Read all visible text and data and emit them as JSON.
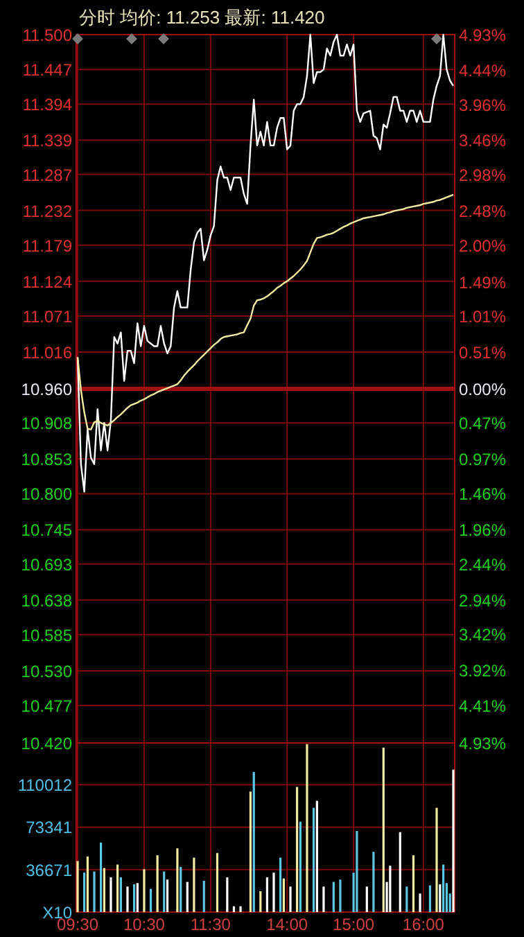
{
  "chart_data": [
    {
      "type": "line",
      "title": "分时 均价: 11.253 最新: 11.420",
      "tick_labels": "y",
      "grid": true,
      "categories": [
        null,
        null,
        null,
        null,
        null,
        null,
        null,
        null,
        null,
        null,
        null,
        null,
        null,
        null,
        null,
        null,
        null,
        null,
        null,
        null,
        null,
        null,
        null,
        null,
        null,
        null,
        null,
        null,
        null,
        null,
        null,
        null,
        null,
        null,
        null,
        null,
        null,
        null,
        null,
        null,
        null,
        null,
        null,
        null,
        null,
        null,
        null,
        null,
        null,
        null,
        null,
        null,
        null,
        null,
        null,
        null,
        null,
        null,
        null,
        null,
        null,
        null,
        null,
        null,
        null,
        null,
        null,
        null,
        null,
        null,
        null,
        null,
        null,
        null,
        null,
        null,
        null,
        null,
        null,
        null,
        null,
        null,
        null,
        null,
        null,
        null,
        null,
        null,
        null,
        null,
        null,
        null,
        null,
        null,
        null,
        null,
        null,
        null,
        null,
        null,
        null,
        null,
        null,
        null,
        null,
        null,
        null,
        null,
        null,
        null,
        null,
        null,
        null,
        null
      ],
      "ylim": [
        10.42,
        11.5
      ],
      "yticks": [
        {
          "value": 11.5,
          "label": "11.500"
        },
        11.447,
        11.394,
        11.339,
        11.287,
        11.232,
        11.179,
        11.124,
        11.071,
        11.016,
        {
          "value": 10.96,
          "label": "10.960"
        },
        10.908,
        10.853,
        {
          "value": 10.8,
          "label": "10.800"
        },
        10.745,
        10.693,
        10.638,
        10.585,
        {
          "value": 10.53,
          "label": "10.530"
        },
        10.477,
        {
          "value": 10.42,
          "label": "10.420"
        }
      ],
      "y2lim": [
        -4.93,
        4.93
      ],
      "y2ticks": [
        {
          "value": 4.93,
          "label": "4.93%"
        },
        {
          "value": 4.44,
          "label": "4.44%"
        },
        {
          "value": 3.96,
          "label": "3.96%"
        },
        {
          "value": 3.46,
          "label": "3.46%"
        },
        {
          "value": 2.98,
          "label": "2.98%"
        },
        {
          "value": 2.48,
          "label": "2.48%"
        },
        {
          "value": 2,
          "label": "2.00%"
        },
        {
          "value": 1.49,
          "label": "1.49%"
        },
        {
          "value": 1.01,
          "label": "1.01%"
        },
        {
          "value": 0.51,
          "label": "0.51%"
        },
        {
          "value": 0,
          "label": "0.00%"
        },
        {
          "value": -0.47,
          "label": "0.47%"
        },
        {
          "value": -0.97,
          "label": "0.97%"
        },
        {
          "value": -1.46,
          "label": "1.46%"
        },
        {
          "value": -1.96,
          "label": "1.96%"
        },
        {
          "value": -2.44,
          "label": "2.44%"
        },
        {
          "value": -2.94,
          "label": "2.94%"
        },
        {
          "value": -3.42,
          "label": "3.42%"
        },
        {
          "value": -3.92,
          "label": "3.92%"
        },
        {
          "value": -4.41,
          "label": "4.41%"
        },
        {
          "value": -4.93,
          "label": "4.93%"
        }
      ],
      "ref_lines": [
        {
          "axis": "y",
          "value": 10.96
        }
      ],
      "series": [
        {
          "color": "#ffffff",
          "values": [
            11.008,
            10.845,
            10.803,
            10.898,
            10.855,
            10.845,
            10.929,
            10.866,
            10.908,
            10.866,
            10.912,
            11.039,
            11.029,
            11.046,
            10.972,
            11.018,
            11.018,
            10.999,
            11.06,
            11.025,
            11.056,
            11.033,
            11.029,
            11.025,
            11.025,
            11.056,
            11.029,
            11.014,
            11.025,
            11.084,
            11.109,
            11.084,
            11.084,
            11.084,
            11.141,
            11.183,
            11.198,
            11.204,
            11.156,
            11.172,
            11.194,
            11.208,
            11.278,
            11.299,
            11.282,
            11.282,
            11.263,
            11.282,
            11.282,
            11.282,
            11.257,
            11.242,
            11.331,
            11.401,
            11.331,
            11.352,
            11.331,
            11.367,
            11.331,
            11.331,
            11.358,
            11.373,
            11.373,
            11.325,
            11.331,
            11.384,
            11.394,
            11.394,
            11.405,
            11.437,
            11.5,
            11.426,
            11.443,
            11.443,
            11.447,
            11.479,
            11.468,
            11.489,
            11.5,
            11.468,
            11.468,
            11.485,
            11.468,
            11.485,
            11.384,
            11.367,
            11.38,
            11.382,
            11.384,
            11.346,
            11.342,
            11.325,
            11.363,
            11.358,
            11.38,
            11.405,
            11.405,
            11.384,
            11.384,
            11.367,
            11.384,
            11.384,
            11.367,
            11.384,
            11.367,
            11.367,
            11.367,
            11.401,
            11.422,
            11.437,
            11.5,
            11.447,
            11.43,
            11.422
          ]
        },
        {
          "color": "#f2eca0",
          "values": [
            11.008,
            10.958,
            10.924,
            10.899,
            10.898,
            10.909,
            10.911,
            10.908,
            10.906,
            10.904,
            10.908,
            10.912,
            10.917,
            10.921,
            10.926,
            10.931,
            10.935,
            10.937,
            10.939,
            10.942,
            10.944,
            10.947,
            10.95,
            10.952,
            10.955,
            10.957,
            10.959,
            10.961,
            10.963,
            10.965,
            10.967,
            10.973,
            10.98,
            10.986,
            10.991,
            10.996,
            11.002,
            11.007,
            11.012,
            11.017,
            11.022,
            11.027,
            11.031,
            11.036,
            11.039,
            11.04,
            11.041,
            11.042,
            11.043,
            11.045,
            11.046,
            11.057,
            11.067,
            11.087,
            11.095,
            11.096,
            11.098,
            11.101,
            11.105,
            11.109,
            11.114,
            11.117,
            11.121,
            11.124,
            11.128,
            11.132,
            11.137,
            11.142,
            11.148,
            11.155,
            11.168,
            11.181,
            11.19,
            11.191,
            11.193,
            11.195,
            11.196,
            11.198,
            11.201,
            11.204,
            11.207,
            11.209,
            11.212,
            11.214,
            11.216,
            11.218,
            11.22,
            11.221,
            11.222,
            11.223,
            11.224,
            11.225,
            11.226,
            11.228,
            11.229,
            11.231,
            11.232,
            11.233,
            11.234,
            11.236,
            11.237,
            11.238,
            11.239,
            11.24,
            11.242,
            11.243,
            11.244,
            11.245,
            11.247,
            11.248,
            11.25,
            11.252,
            11.254,
            11.256
          ]
        }
      ]
    },
    {
      "type": "bar",
      "grid": true,
      "categories": [
        "09:30",
        null,
        null,
        null,
        null,
        null,
        null,
        null,
        null,
        null,
        null,
        null,
        null,
        null,
        null,
        null,
        null,
        null,
        null,
        null,
        "10:30",
        null,
        null,
        null,
        null,
        null,
        null,
        null,
        null,
        null,
        null,
        null,
        null,
        null,
        null,
        null,
        null,
        null,
        null,
        null,
        "11:30",
        null,
        null,
        null,
        null,
        null,
        null,
        null,
        null,
        null,
        null,
        null,
        null,
        null,
        null,
        null,
        null,
        null,
        null,
        null,
        null,
        null,
        null,
        "14:00",
        null,
        null,
        null,
        null,
        null,
        null,
        null,
        null,
        null,
        null,
        null,
        null,
        null,
        null,
        null,
        null,
        null,
        null,
        null,
        "15:00",
        null,
        null,
        null,
        null,
        null,
        null,
        null,
        null,
        null,
        null,
        null,
        null,
        null,
        null,
        null,
        null,
        null,
        null,
        null,
        null,
        "16:00",
        null,
        null,
        null,
        null,
        null,
        null,
        null,
        null,
        null
      ],
      "ylim": [
        0,
        146000
      ],
      "yticks": [
        {
          "value": 0,
          "label": "X10"
        },
        36671,
        73341,
        110012
      ],
      "values": [
        44000,
        null,
        34000,
        48000,
        null,
        35000,
        null,
        60000,
        38000,
        null,
        30000,
        null,
        41000,
        30000,
        null,
        22000,
        null,
        24000,
        25000,
        null,
        37000,
        null,
        20000,
        null,
        49000,
        null,
        35000,
        28000,
        null,
        null,
        55000,
        39000,
        null,
        26000,
        null,
        47000,
        null,
        null,
        27000,
        null,
        null,
        null,
        51000,
        null,
        null,
        30000,
        null,
        5000,
        null,
        5000,
        null,
        null,
        104000,
        121000,
        null,
        18000,
        null,
        30000,
        null,
        34000,
        null,
        47000,
        29000,
        null,
        22000,
        null,
        108000,
        78000,
        null,
        145000,
        null,
        90000,
        96000,
        null,
        22000,
        null,
        null,
        26000,
        null,
        28000,
        null,
        null,
        null,
        34000,
        70000,
        null,
        null,
        22000,
        null,
        52000,
        null,
        null,
        142000,
        26000,
        40000,
        null,
        null,
        69000,
        null,
        22000,
        null,
        49000,
        null,
        16000,
        null,
        null,
        23000,
        null,
        90000,
        24000,
        41000,
        25000,
        16000,
        123000
      ],
      "colors": [
        "#f2eca0",
        null,
        "#5cc8e8",
        "#f2eca0",
        null,
        "#5cc8e8",
        null,
        "#5cc8e8",
        "#f2eca0",
        null,
        "#ffffff",
        null,
        "#f2eca0",
        "#5cc8e8",
        null,
        "#ffffff",
        null,
        "#5cc8e8",
        "#ffffff",
        null,
        "#f2eca0",
        null,
        "#5cc8e8",
        null,
        "#f2eca0",
        null,
        "#5cc8e8",
        "#ffffff",
        null,
        null,
        "#f2eca0",
        "#5cc8e8",
        null,
        "#ffffff",
        null,
        "#f2eca0",
        null,
        null,
        "#5cc8e8",
        null,
        null,
        null,
        "#f2eca0",
        null,
        null,
        "#ffffff",
        null,
        "#ffffff",
        null,
        "#ffffff",
        null,
        null,
        "#f2eca0",
        "#5cc8e8",
        null,
        "#f2eca0",
        null,
        "#ffffff",
        null,
        "#ffffff",
        null,
        "#5cc8e8",
        "#f2eca0",
        null,
        "#ffffff",
        null,
        "#f2eca0",
        "#5cc8e8",
        null,
        "#f2eca0",
        null,
        "#5cc8e8",
        "#ffffff",
        null,
        "#ffffff",
        null,
        null,
        "#5cc8e8",
        null,
        "#5cc8e8",
        null,
        null,
        null,
        "#5cc8e8",
        "#5cc8e8",
        null,
        null,
        "#ffffff",
        null,
        "#5cc8e8",
        null,
        null,
        "#f2eca0",
        "#ffffff",
        "#ffffff",
        null,
        null,
        "#ffffff",
        null,
        "#5cc8e8",
        null,
        "#f2eca0",
        null,
        "#ffffff",
        null,
        null,
        "#5cc8e8",
        null,
        "#f2eca0",
        "#ffffff",
        "#5cc8e8",
        "#5cc8e8",
        "#5cc8e8",
        "#ffffff"
      ]
    }
  ]
}
